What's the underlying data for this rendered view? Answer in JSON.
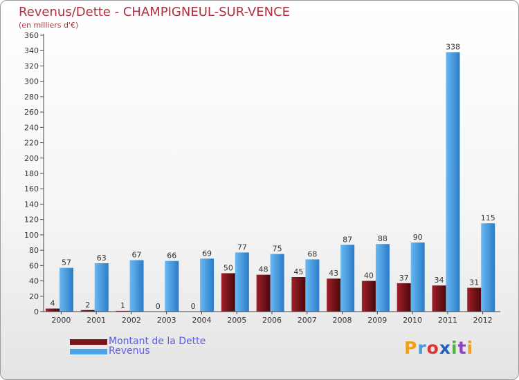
{
  "header": {
    "title": "Revenus/Dette - CHAMPIGNEUL-SUR-VENCE",
    "subtitle": "(en milliers d'€)"
  },
  "chart_data": {
    "type": "bar",
    "categories": [
      "2000",
      "2001",
      "2002",
      "2003",
      "2004",
      "2005",
      "2006",
      "2007",
      "2008",
      "2009",
      "2010",
      "2011",
      "2012"
    ],
    "series": [
      {
        "name": "Montant de la Dette",
        "values": [
          4,
          2,
          1,
          0,
          0,
          50,
          48,
          45,
          43,
          40,
          37,
          34,
          31
        ],
        "color": "#7a1418"
      },
      {
        "name": "Revenus",
        "values": [
          57,
          63,
          67,
          66,
          69,
          77,
          75,
          68,
          87,
          88,
          90,
          338,
          115
        ],
        "color": "#4aa3e6"
      }
    ],
    "ylim": [
      0,
      360
    ],
    "ytick_step": 20,
    "grid": false,
    "legend_position": "bottom-left"
  },
  "logo": {
    "letters": [
      "P",
      "r",
      "o",
      "x",
      "i",
      "t",
      "i"
    ],
    "colors": [
      "#f0a020",
      "#40a0e0",
      "#e03030",
      "#2060c0",
      "#50b040",
      "#9040c0",
      "#f0a020"
    ]
  }
}
